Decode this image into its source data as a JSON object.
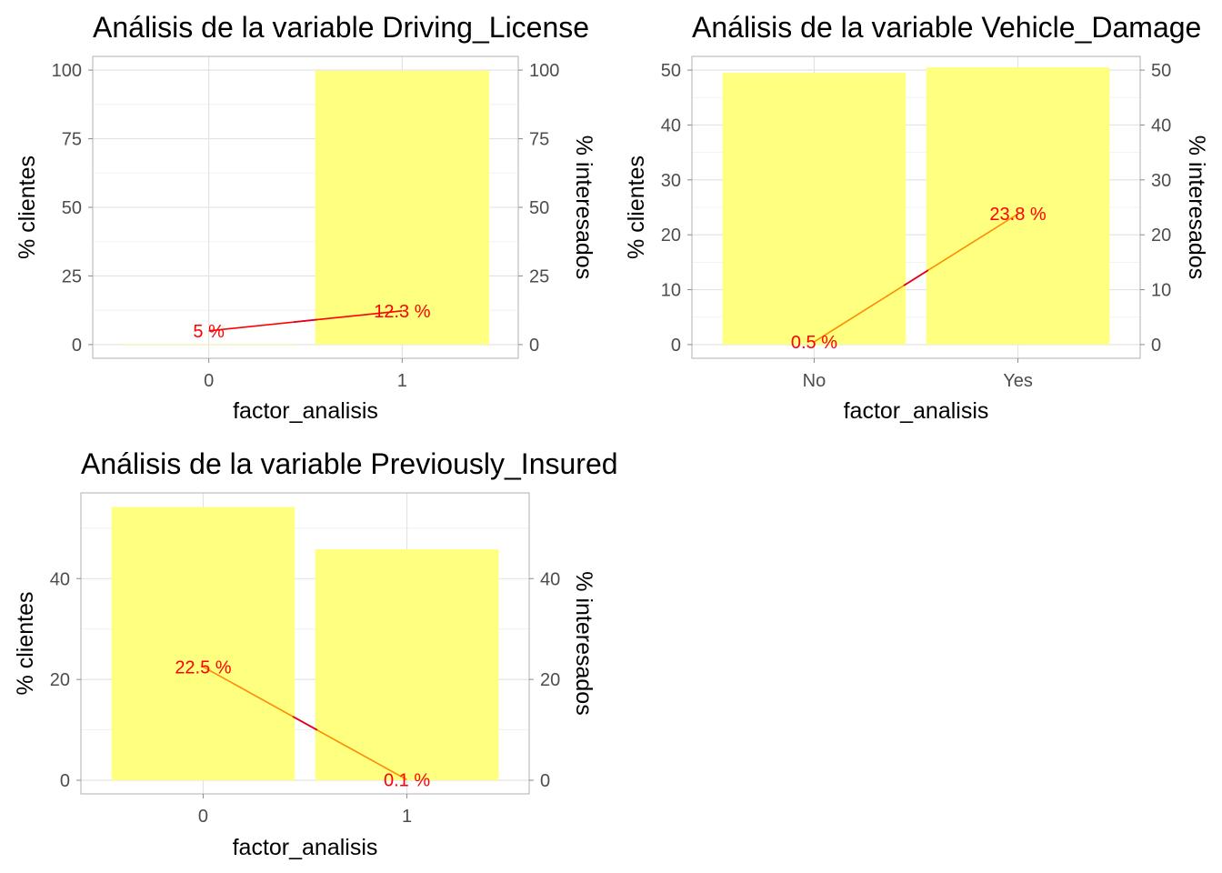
{
  "chart_data": [
    {
      "type": "bar",
      "title": "Análisis de la variable Driving_License",
      "xlabel": "factor_analisis",
      "ylabel": "% clientes",
      "y2label": "% interesados",
      "categories": [
        "0",
        "1"
      ],
      "series": [
        {
          "values": [
            0.2,
            99.8
          ],
          "kind": "bar",
          "color": "#ffff80"
        },
        {
          "values": [
            5,
            12.3
          ],
          "kind": "line",
          "color": "#ff0000",
          "labels": [
            "5  %",
            "12.3  %"
          ]
        }
      ],
      "ylim": [
        -5,
        105
      ],
      "yticks": [
        0,
        25,
        50,
        75,
        100
      ],
      "grid": true
    },
    {
      "type": "bar",
      "title": "Análisis de la variable Vehicle_Damage",
      "xlabel": "factor_analisis",
      "ylabel": "% clientes",
      "y2label": "% interesados",
      "categories": [
        "No",
        "Yes"
      ],
      "series": [
        {
          "values": [
            49.5,
            50.5
          ],
          "kind": "bar",
          "color": "#ffff80"
        },
        {
          "values": [
            0.5,
            23.8
          ],
          "kind": "line",
          "color": "#ff8c00",
          "labels": [
            "0.5  %",
            "23.8  %"
          ]
        }
      ],
      "ylim": [
        -2.5,
        52.5
      ],
      "yticks": [
        0,
        10,
        20,
        30,
        40,
        50
      ],
      "grid": true
    },
    {
      "type": "bar",
      "title": "Análisis de la variable Previously_Insured",
      "xlabel": "factor_analisis",
      "ylabel": "% clientes",
      "y2label": "% interesados",
      "categories": [
        "0",
        "1"
      ],
      "series": [
        {
          "values": [
            54.2,
            45.8
          ],
          "kind": "bar",
          "color": "#ffff80"
        },
        {
          "values": [
            22.5,
            0.1
          ],
          "kind": "line",
          "color": "#ff8c00",
          "labels": [
            "22.5  %",
            "0.1  %"
          ]
        }
      ],
      "ylim": [
        -2.7,
        57
      ],
      "yticks": [
        0,
        20,
        40
      ],
      "grid": true
    }
  ]
}
